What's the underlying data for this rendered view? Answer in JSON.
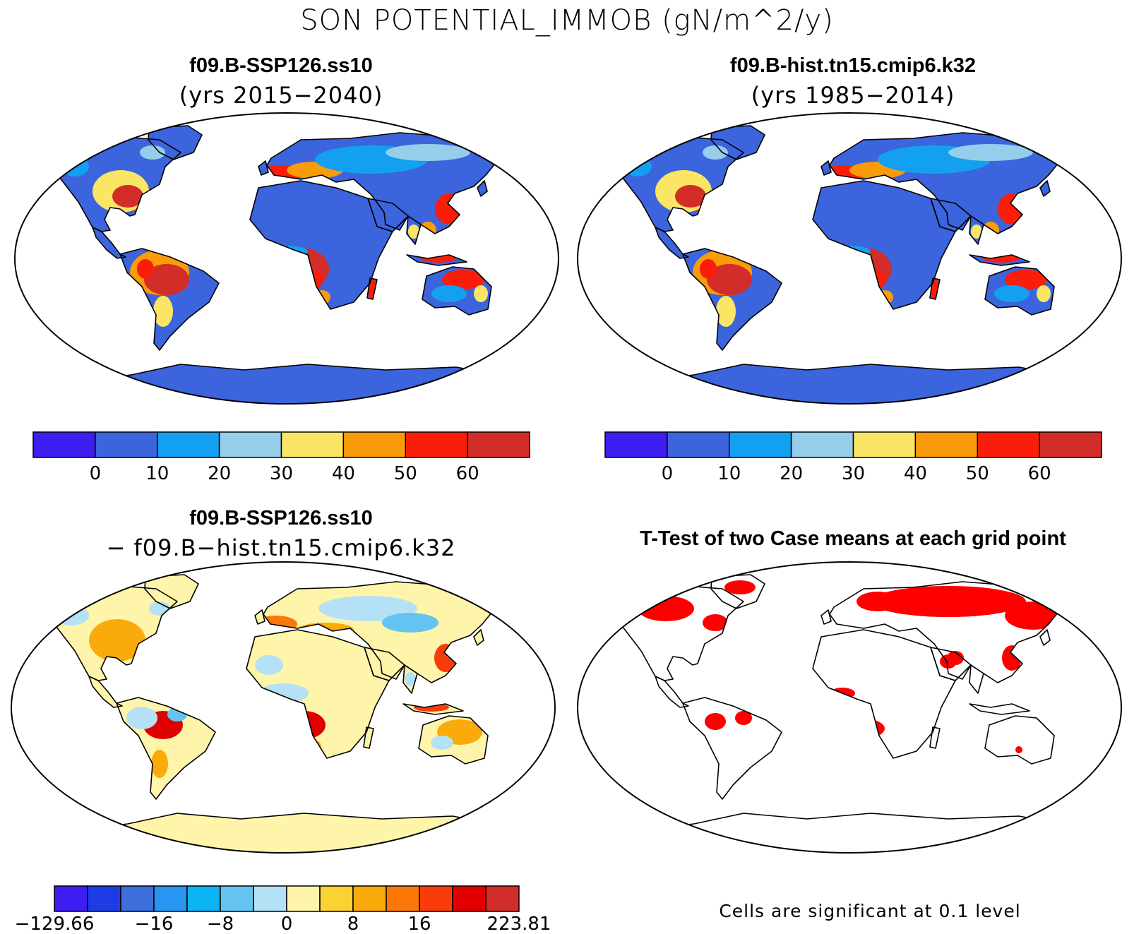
{
  "figure": {
    "title": "SON POTENTIAL_IMMOB (gN/m^2/y)"
  },
  "panels": [
    {
      "id": "case1",
      "title": "f09.B-SSP126.ss10",
      "subtitle": "(yrs 2015−2040)"
    },
    {
      "id": "case2",
      "title": "f09.B-hist.tn15.cmip6.k32",
      "subtitle": "(yrs 1985−2014)"
    },
    {
      "id": "diff",
      "title": "f09.B-SSP126.ss10",
      "subtitle": "− f09.B−hist.tn15.cmip6.k32"
    },
    {
      "id": "ttest",
      "title": "T-Test of two Case means at each grid point",
      "note": "Cells are significant at 0.1 level"
    }
  ],
  "colorbars": {
    "absolute": {
      "colors": [
        "#3c1ef0",
        "#3c64dc",
        "#14a0f0",
        "#96cdeb",
        "#fae664",
        "#fa9b0a",
        "#fa1e0a",
        "#d22d28"
      ],
      "labels": [
        "0",
        "10",
        "20",
        "30",
        "40",
        "50",
        "60"
      ]
    },
    "difference": {
      "colors": [
        "#3c1ef0",
        "#1e3ce6",
        "#3c6edc",
        "#2896f0",
        "#0ab4f5",
        "#64c3f0",
        "#b4e1f5",
        "#fff5aa",
        "#fad232",
        "#faaa0a",
        "#fa780a",
        "#fa3c0a",
        "#e10000",
        "#d22d28"
      ],
      "labels": [
        "−129.66",
        "−16",
        "−8",
        "0",
        "8",
        "16",
        "223.81"
      ]
    },
    "significance_color": "#ff0000"
  },
  "map_colors": {
    "ocean": "#ffffff",
    "coast": "#000000"
  }
}
